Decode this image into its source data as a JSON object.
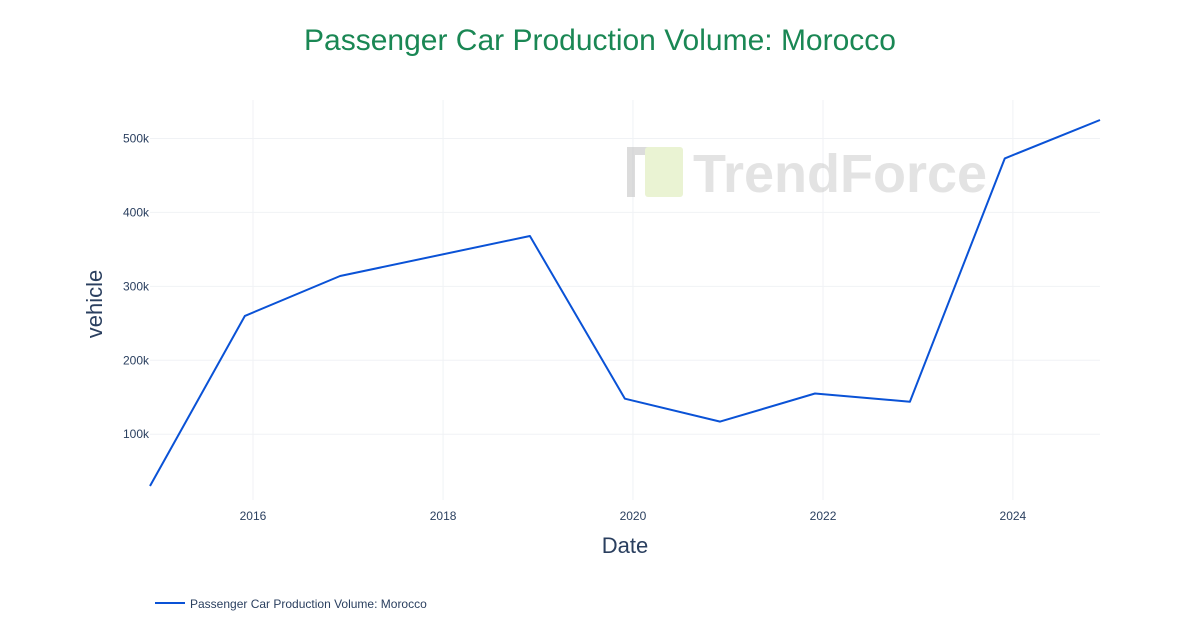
{
  "chart_data": {
    "type": "line",
    "title": "Passenger Car Production Volume: Morocco",
    "xlabel": "Date",
    "ylabel": "vehicle",
    "x": [
      "2014-12-01",
      "2015-12-01",
      "2016-12-01",
      "2018-12-01",
      "2019-12-01",
      "2020-12-01",
      "2021-12-01",
      "2022-12-01",
      "2023-12-01",
      "2024-12-01"
    ],
    "series": [
      {
        "name": "Passenger Car Production Volume: Morocco",
        "values": [
          30000,
          260000,
          314000,
          368000,
          148000,
          117000,
          155000,
          144000,
          473000,
          525000
        ],
        "color": "#0a52d6"
      }
    ],
    "x_ticks": [
      "2016",
      "2018",
      "2020",
      "2022",
      "2024"
    ],
    "y_ticks": [
      {
        "value": 100000,
        "label": "100k"
      },
      {
        "value": 200000,
        "label": "200k"
      },
      {
        "value": 300000,
        "label": "300k"
      },
      {
        "value": 400000,
        "label": "400k"
      },
      {
        "value": 500000,
        "label": "500k"
      }
    ],
    "xlim": [
      "2014-12-01",
      "2024-12-01"
    ],
    "ylim": [
      11000,
      552000
    ],
    "grid": true,
    "legend_placement": "bottom-left",
    "title_color": "#1a8754"
  },
  "watermark": {
    "text": "TrendForce"
  }
}
